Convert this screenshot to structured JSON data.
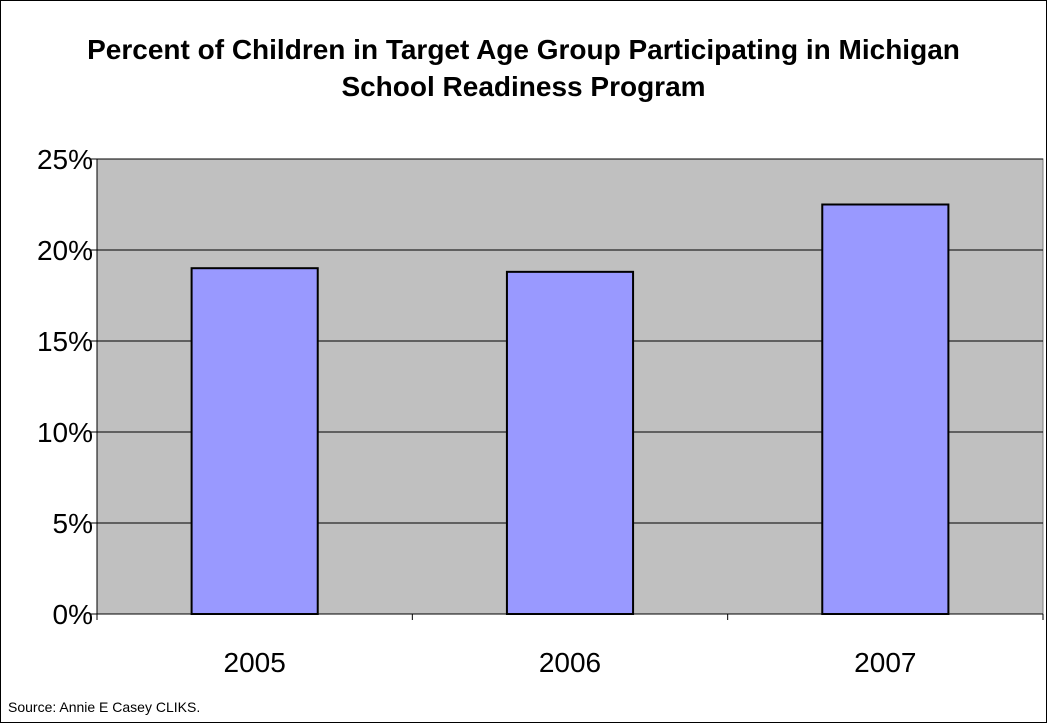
{
  "chart_data": {
    "type": "bar",
    "title_lines": [
      "Percent of Children in Target Age Group Participating in Michigan",
      "School Readiness Program"
    ],
    "categories": [
      "2005",
      "2006",
      "2007"
    ],
    "series": [
      {
        "values": [
          19.0,
          18.8,
          22.5
        ]
      }
    ],
    "ylim": [
      0,
      25
    ],
    "yticks": [
      0,
      5,
      10,
      15,
      20,
      25
    ],
    "ytick_labels": [
      "0%",
      "5%",
      "10%",
      "15%",
      "20%",
      "25%"
    ],
    "grid": true,
    "legend": "none",
    "colors": {
      "bar_fill": "#9999ff",
      "plot_background": "#c0c0c0",
      "gridline": "#000000"
    }
  },
  "source_note": "Source: Annie E Casey CLIKS."
}
